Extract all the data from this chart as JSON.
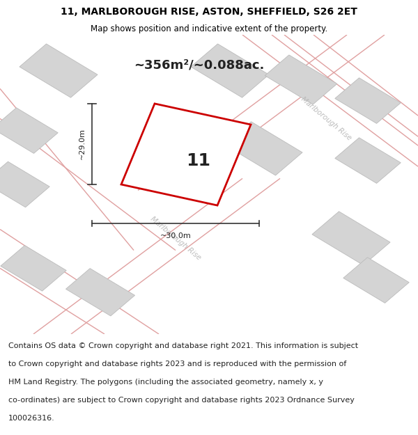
{
  "title_line1": "11, MARLBOROUGH RISE, ASTON, SHEFFIELD, S26 2ET",
  "title_line2": "Map shows position and indicative extent of the property.",
  "area_text": "~356m²/~0.088ac.",
  "number_label": "11",
  "dim_width": "~30.0m",
  "dim_height": "~29.0m",
  "road_label": "Marlborough Rise",
  "footer_lines": [
    "Contains OS data © Crown copyright and database right 2021. This information is subject",
    "to Crown copyright and database rights 2023 and is reproduced with the permission of",
    "HM Land Registry. The polygons (including the associated geometry, namely x, y",
    "co-ordinates) are subject to Crown copyright and database rights 2023 Ordnance Survey",
    "100026316."
  ],
  "map_bg": "#e8e8e8",
  "plot_outline_color": "#cc0000",
  "neighbor_facecolor": "#d4d4d4",
  "neighbor_edgecolor": "#bbbbbb",
  "road_line_color": "#e0a0a0",
  "title_fontsize": 10,
  "subtitle_fontsize": 8.5,
  "area_fontsize": 13,
  "number_fontsize": 18,
  "road_label_fontsize": 7.5,
  "dim_fontsize": 8,
  "footer_fontsize": 8
}
